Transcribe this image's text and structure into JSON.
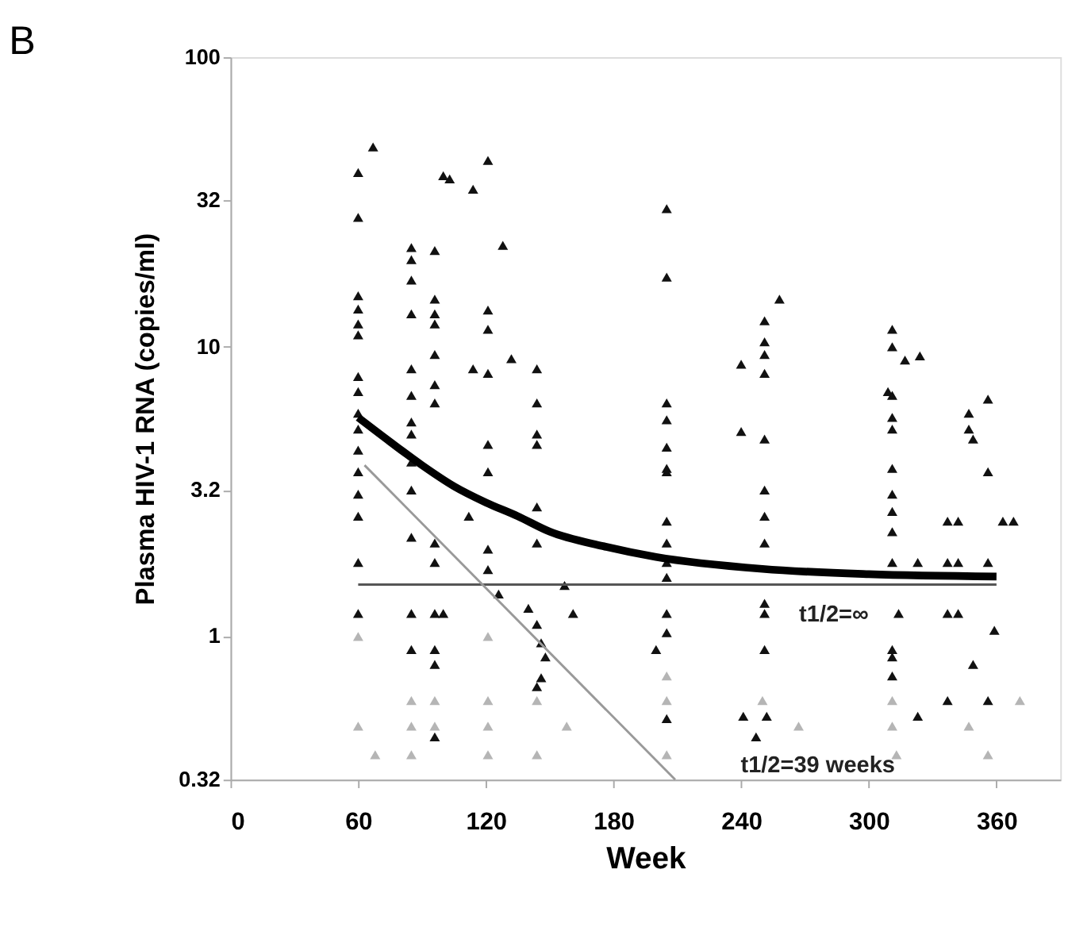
{
  "chart_data": {
    "type": "scatter",
    "title": "B",
    "xlabel": "Week",
    "ylabel": "Plasma HIV-1 RNA (copies/ml)",
    "log": "y",
    "xlim": [
      0,
      390
    ],
    "xticks": [
      0,
      60,
      120,
      180,
      240,
      300,
      360
    ],
    "ylim": [
      0.32,
      100
    ],
    "yticks": [
      0.32,
      1,
      3.2,
      10,
      32,
      100
    ],
    "grid": false,
    "marker": "triangle",
    "annotations": [
      "t1/2=∞",
      "t1/2=39 weeks"
    ],
    "series": [
      {
        "color": "#111111",
        "x": [
          67,
          60,
          60,
          60,
          60,
          60,
          60,
          60,
          60,
          60,
          60,
          60,
          60,
          60,
          60,
          60,
          60,
          85,
          85,
          85,
          85,
          85,
          85,
          85,
          85,
          85,
          85,
          85,
          85,
          85,
          96,
          96,
          96,
          96,
          96,
          96,
          96,
          96,
          96,
          100,
          96,
          96,
          96,
          96,
          100,
          103,
          114,
          121,
          128,
          121,
          121,
          114,
          121,
          132,
          121,
          121,
          112,
          121,
          121,
          126,
          144,
          144,
          144,
          144,
          144,
          144,
          140,
          144,
          146,
          148,
          146,
          144,
          157,
          161,
          205,
          205,
          205,
          205,
          205,
          205,
          205,
          205,
          205,
          205,
          205,
          205,
          205,
          200,
          205,
          258,
          251,
          251,
          251,
          251,
          240,
          240,
          251,
          251,
          251,
          251,
          251,
          251,
          251,
          241,
          247,
          252,
          311,
          311,
          317,
          324,
          311,
          309,
          311,
          311,
          311,
          311,
          311,
          311,
          311,
          323,
          314,
          311,
          311,
          311,
          323,
          347,
          347,
          349,
          356,
          356,
          337,
          342,
          337,
          342,
          356,
          337,
          342,
          359,
          349,
          337,
          356,
          363,
          368
        ],
        "values": [
          49,
          40,
          28,
          15,
          13.5,
          12,
          11,
          7.9,
          7,
          5.9,
          5.2,
          4.4,
          3.7,
          3.1,
          2.6,
          1.8,
          1.2,
          22,
          20,
          17,
          13,
          8.4,
          6.8,
          5.5,
          5,
          4,
          3.2,
          2.2,
          1.2,
          0.9,
          21.5,
          14.6,
          13,
          12,
          9.4,
          7.4,
          6.4,
          2.1,
          1.8,
          1.2,
          1.2,
          0.9,
          0.8,
          0.45,
          39,
          38,
          35,
          44,
          22.4,
          13.4,
          11.5,
          8.4,
          8.1,
          9.1,
          4.6,
          3.7,
          2.6,
          2,
          1.7,
          1.4,
          8.4,
          6.4,
          5,
          4.6,
          2.8,
          2.1,
          1.25,
          1.1,
          0.95,
          0.85,
          0.72,
          0.67,
          1.5,
          1.2,
          30,
          17.4,
          6.4,
          5.6,
          4.5,
          3.8,
          3.7,
          2.5,
          2.1,
          1.8,
          1.6,
          1.2,
          1.03,
          0.9,
          0.52,
          14.6,
          12.3,
          10.4,
          9.4,
          8.1,
          8.7,
          5.1,
          4.8,
          3.2,
          2.6,
          2.1,
          1.3,
          1.2,
          0.9,
          0.53,
          0.45,
          0.53,
          11.5,
          10,
          9,
          9.3,
          6.8,
          7,
          5.7,
          5.2,
          3.8,
          3.1,
          2.7,
          2.3,
          1.8,
          1.8,
          1.2,
          0.9,
          0.85,
          0.73,
          0.53,
          5.9,
          5.2,
          4.8,
          6.6,
          3.7,
          2.5,
          2.5,
          1.8,
          1.8,
          1.8,
          1.2,
          1.2,
          1.05,
          0.8,
          0.6,
          0.6,
          2.5,
          2.5
        ]
      },
      {
        "color": "#b5b5b5",
        "x": [
          60,
          60,
          68,
          85,
          85,
          85,
          96,
          96,
          121,
          121,
          121,
          121,
          144,
          144,
          158,
          205,
          205,
          205,
          250,
          267,
          311,
          313,
          311,
          371,
          347,
          356
        ],
        "values": [
          1.0,
          0.49,
          0.39,
          0.6,
          0.49,
          0.39,
          0.6,
          0.49,
          1.0,
          0.6,
          0.49,
          0.39,
          0.6,
          0.39,
          0.49,
          0.73,
          0.6,
          0.39,
          0.6,
          0.49,
          0.6,
          0.39,
          0.49,
          0.6,
          0.49,
          0.39
        ]
      },
      {
        "color": "#000000",
        "type": "line",
        "marker": "none",
        "x": [
          60,
          75,
          90,
          105,
          120,
          135,
          150,
          175,
          200,
          250,
          300,
          360
        ],
        "values": [
          5.7,
          4.7,
          3.9,
          3.3,
          2.9,
          2.6,
          2.3,
          2.05,
          1.88,
          1.71,
          1.64,
          1.61
        ]
      },
      {
        "color": "#555555",
        "type": "line",
        "marker": "none",
        "x": [
          60,
          360
        ],
        "values": [
          1.51,
          1.51
        ]
      },
      {
        "color": "#999999",
        "type": "line",
        "marker": "none",
        "x": [
          63,
          209
        ],
        "values": [
          3.9,
          0.32
        ]
      }
    ]
  }
}
